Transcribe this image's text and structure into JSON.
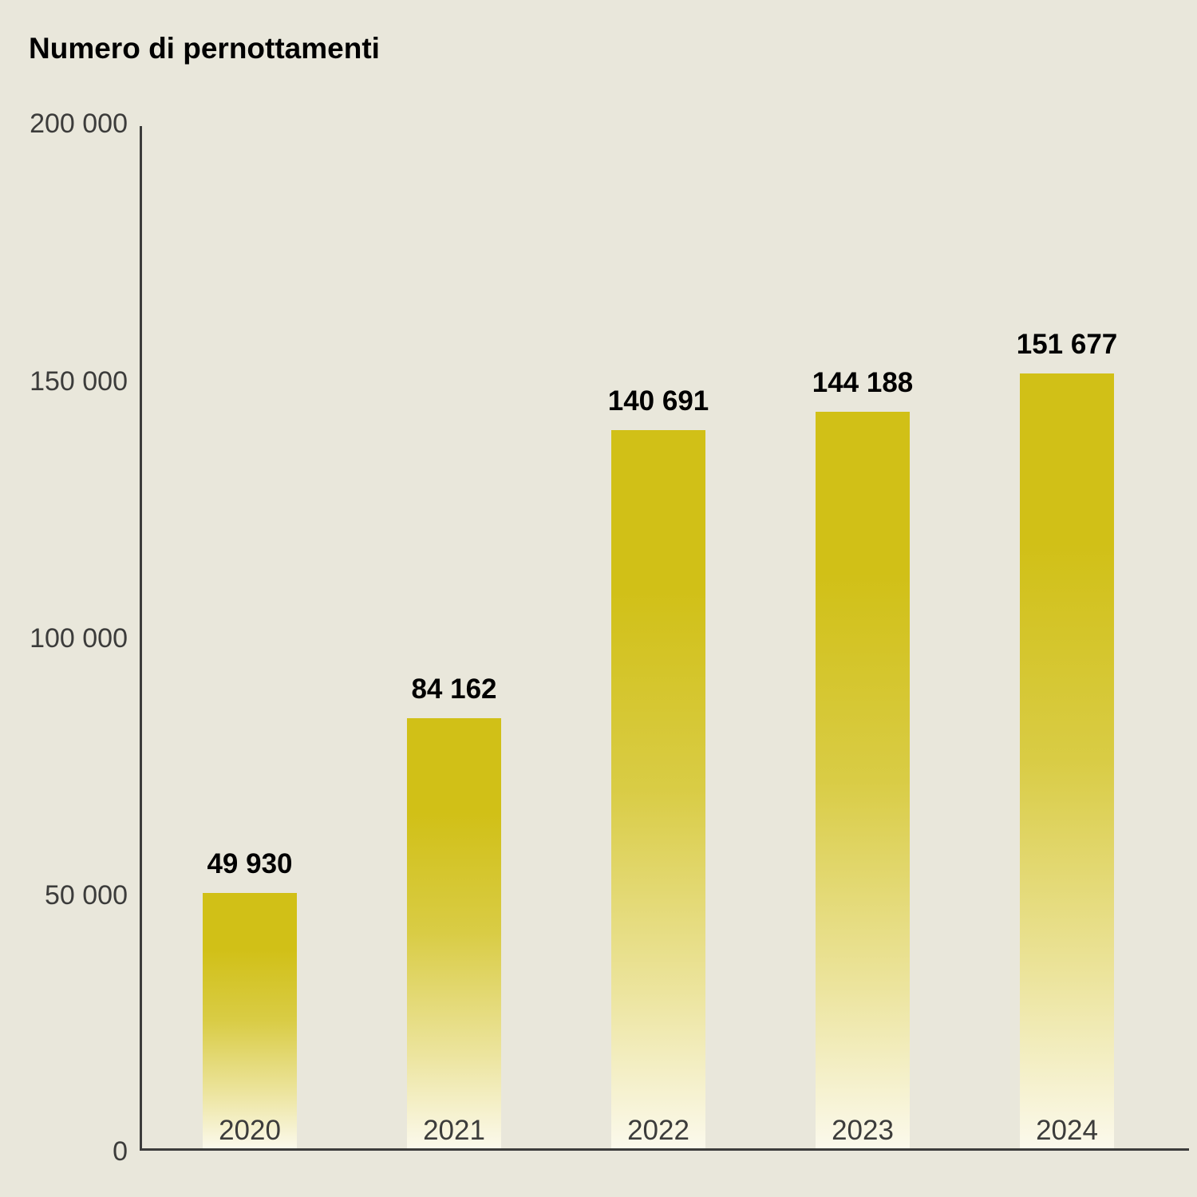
{
  "title": "Numero di pernottamenti",
  "colors": {
    "background": "#e9e7db",
    "bar": "#d1c017",
    "bar_fade": "#fbf9ec",
    "axis": "#3c3c3b",
    "value_label": "#000000",
    "tick_label": "#3c3c3b"
  },
  "chart_data": {
    "type": "bar",
    "title": "Numero di pernottamenti",
    "xlabel": "",
    "ylabel": "",
    "categories": [
      "2020",
      "2021",
      "2022",
      "2023",
      "2024"
    ],
    "values": [
      49930,
      84162,
      140691,
      144188,
      151677
    ],
    "value_labels": [
      "49 930",
      "84 162",
      "140 691",
      "144 188",
      "151 677"
    ],
    "ylim": [
      0,
      200000
    ],
    "yticks": [
      0,
      50000,
      100000,
      150000,
      200000
    ],
    "ytick_labels": [
      "0",
      "50 000",
      "100 000",
      "150 000",
      "200 000"
    ],
    "grid": false,
    "legend_position": "none",
    "bar_style": "vertical gradient fading to white at base"
  }
}
